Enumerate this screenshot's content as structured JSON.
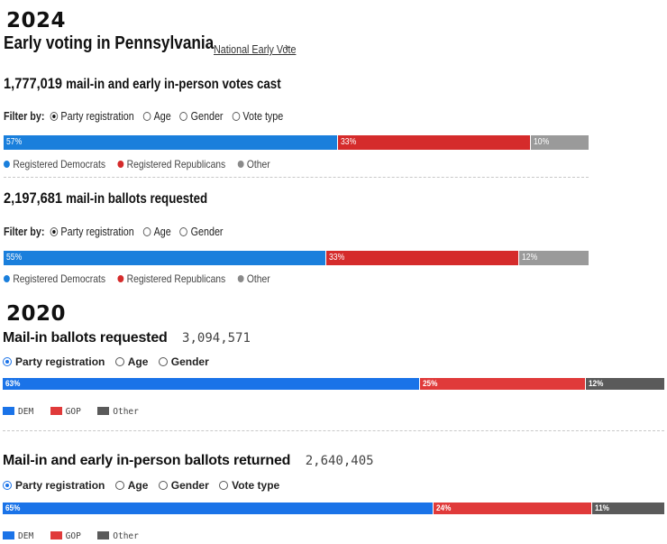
{
  "section2024": {
    "year": "2024",
    "title": "Early voting in Pennsylvania",
    "link": "National Early Vote",
    "link_chevron": "›",
    "colors": {
      "dem": "#1a7fdc",
      "gop": "#d52b2b",
      "other": "#9a9a9a"
    },
    "block1": {
      "count": "1,777,019",
      "label": "mail-in and early in-person votes cast",
      "filter_label": "Filter by:",
      "filters": [
        "Party registration",
        "Age",
        "Gender",
        "Vote type"
      ],
      "selected": "Party registration",
      "bar": [
        {
          "label": "57%",
          "value": 57
        },
        {
          "label": "33%",
          "value": 33
        },
        {
          "label": "10%",
          "value": 10
        }
      ],
      "legend": [
        "Registered Democrats",
        "Registered Republicans",
        "Other"
      ]
    },
    "block2": {
      "count": "2,197,681",
      "label": "mail-in ballots requested",
      "filter_label": "Filter by:",
      "filters": [
        "Party registration",
        "Age",
        "Gender"
      ],
      "selected": "Party registration",
      "bar": [
        {
          "label": "55%",
          "value": 55
        },
        {
          "label": "33%",
          "value": 33
        },
        {
          "label": "12%",
          "value": 12
        }
      ],
      "legend": [
        "Registered Democrats",
        "Registered Republicans",
        "Other"
      ]
    }
  },
  "section2020": {
    "year": "2020",
    "colors": {
      "dem": "#1a73e8",
      "gop": "#e03a3a",
      "other": "#5a5a5a"
    },
    "block1": {
      "title": "Mail-in ballots requested",
      "count": "3,094,571",
      "filters": [
        "Party registration",
        "Age",
        "Gender"
      ],
      "selected": "Party registration",
      "bar": [
        {
          "label": "63%",
          "value": 63
        },
        {
          "label": "25%",
          "value": 25
        },
        {
          "label": "12%",
          "value": 12
        }
      ],
      "legend": [
        "DEM",
        "GOP",
        "Other"
      ]
    },
    "block2": {
      "title": "Mail-in and early in-person ballots returned",
      "count": "2,640,405",
      "filters": [
        "Party registration",
        "Age",
        "Gender",
        "Vote type"
      ],
      "selected": "Party registration",
      "bar": [
        {
          "label": "65%",
          "value": 65
        },
        {
          "label": "24%",
          "value": 24
        },
        {
          "label": "11%",
          "value": 11
        }
      ],
      "legend": [
        "DEM",
        "GOP",
        "Other"
      ]
    }
  }
}
